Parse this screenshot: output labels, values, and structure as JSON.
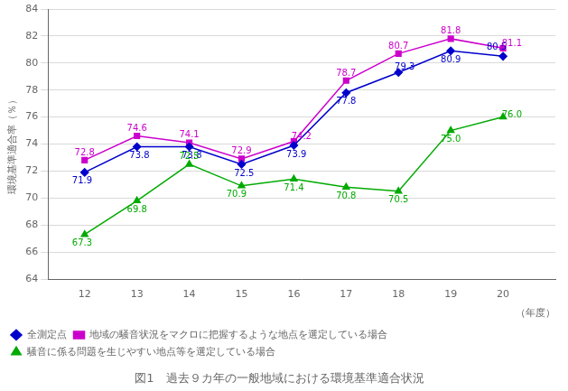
{
  "chart_data": {
    "type": "line",
    "title": "図1　過去９カ年の一般地域における環境基準適合状況",
    "xlabel": "（年度）",
    "ylabel": "環境基準適合率（％）",
    "x": [
      12,
      13,
      14,
      15,
      16,
      17,
      18,
      19,
      20
    ],
    "series": [
      {
        "name": "全測定点",
        "color": "#0000cc",
        "marker": "diamond",
        "values": [
          71.9,
          73.8,
          73.8,
          72.5,
          73.9,
          77.8,
          79.3,
          80.9,
          80.5
        ]
      },
      {
        "name": "地域の騒音状況をマクロに把握するような地点を選定している場合",
        "color": "#cc00cc",
        "marker": "square",
        "values": [
          72.8,
          74.6,
          74.1,
          72.9,
          74.2,
          78.7,
          80.7,
          81.8,
          81.1
        ]
      },
      {
        "name": "騒音に係る問題を生じやすい地点等を選定している場合",
        "color": "#00aa00",
        "marker": "triangle",
        "values": [
          67.3,
          69.8,
          72.5,
          70.9,
          71.4,
          70.8,
          70.5,
          75.0,
          76.0
        ],
        "value_labels": [
          "67.3",
          "69.8",
          "72.5",
          "70.9",
          "71.4",
          "70.8",
          "70.5",
          "75.0",
          "76.0"
        ]
      }
    ],
    "xlim": [
      11.3,
      21.0
    ],
    "xticks": [
      12,
      13,
      14,
      15,
      16,
      17,
      18,
      19,
      20
    ],
    "ylim": [
      64,
      84
    ],
    "yticks": [
      64,
      66,
      68,
      70,
      72,
      74,
      76,
      78,
      80,
      82,
      84
    ],
    "grid": "y",
    "legend": "bottom",
    "data_labels": true
  }
}
